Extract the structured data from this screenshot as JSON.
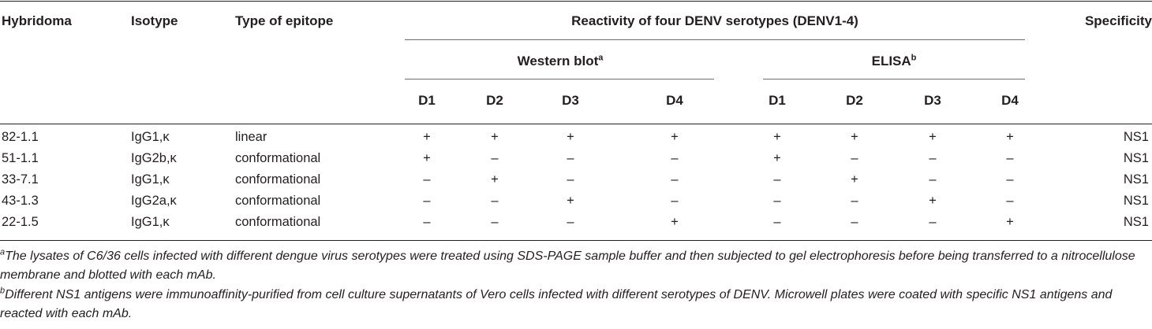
{
  "table": {
    "headers": {
      "hybridoma": "Hybridoma",
      "isotype": "Isotype",
      "epitope": "Type of epitope",
      "reactivity": "Reactivity of four DENV serotypes (DENV1-4)",
      "specificity": "Specificity",
      "western_blot": "Western blot",
      "western_blot_sup": "a",
      "elisa": "ELISA",
      "elisa_sup": "b",
      "serotypes": [
        "D1",
        "D2",
        "D3",
        "D4",
        "D1",
        "D2",
        "D3",
        "D4"
      ]
    },
    "rows": [
      {
        "hybridoma": "82-1.1",
        "isotype": "IgG1,κ",
        "epitope": "linear",
        "values": [
          "+",
          "+",
          "+",
          "+",
          "+",
          "+",
          "+",
          "+"
        ],
        "specificity": "NS1"
      },
      {
        "hybridoma": "51-1.1",
        "isotype": "IgG2b,κ",
        "epitope": "conformational",
        "values": [
          "+",
          "–",
          "–",
          "–",
          "+",
          "–",
          "–",
          "–"
        ],
        "specificity": "NS1"
      },
      {
        "hybridoma": "33-7.1",
        "isotype": "IgG1,κ",
        "epitope": "conformational",
        "values": [
          "–",
          "+",
          "–",
          "–",
          "–",
          "+",
          "–",
          "–"
        ],
        "specificity": "NS1"
      },
      {
        "hybridoma": "43-1.3",
        "isotype": "IgG2a,κ",
        "epitope": "conformational",
        "values": [
          "–",
          "–",
          "+",
          "–",
          "–",
          "–",
          "+",
          "–"
        ],
        "specificity": "NS1"
      },
      {
        "hybridoma": "22-1.5",
        "isotype": "IgG1,κ",
        "epitope": "conformational",
        "values": [
          "–",
          "–",
          "–",
          "+",
          "–",
          "–",
          "–",
          "+"
        ],
        "specificity": "NS1"
      }
    ]
  },
  "footnotes": [
    {
      "mark": "a",
      "text": "The lysates of C6/36 cells infected with different dengue virus serotypes were treated using SDS-PAGE sample buffer and then subjected to gel electrophoresis before being transferred to a nitrocellulose membrane and blotted with each mAb."
    },
    {
      "mark": "b",
      "text": "Different NS1 antigens were immunoaffinity-purified from cell culture supernatants of Vero cells infected with different serotypes of DENV. Microwell plates were coated with specific NS1 antigens and reacted with each mAb."
    }
  ]
}
